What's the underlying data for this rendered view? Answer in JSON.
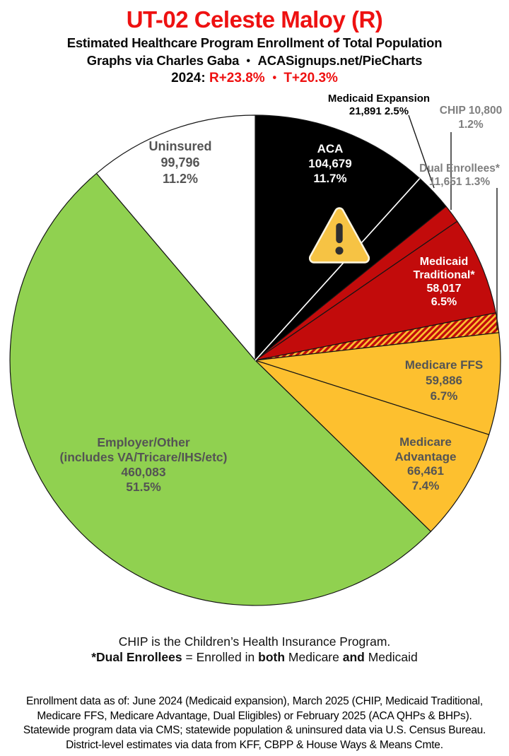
{
  "header": {
    "title": "UT-02 Celeste Maloy (R)",
    "subtitle": "Estimated Healthcare Program Enrollment of Total Population",
    "credit": {
      "left": "Graphs via Charles Gaba",
      "bullet": "•",
      "right": "ACASignups.net/PieCharts"
    },
    "lean": {
      "year": "2024:",
      "r": "R+23.8%",
      "bullet": "•",
      "t": "T+20.3%"
    }
  },
  "colors": {
    "title_red": "#ee1111",
    "medicaid_red": "#c20b0b",
    "medicare_yellow": "#fdc02f",
    "employer_green": "#90d150",
    "aca_black": "#000000",
    "uninsured_white": "#ffffff",
    "label_dark_gray": "#545454",
    "label_muted_gray": "#7f7f7f"
  },
  "icons": {
    "warning": "warning-triangle-icon"
  },
  "chart_data": {
    "type": "pie",
    "title": "UT-02 Celeste Maloy (R)",
    "subtitle": "Estimated Healthcare Program Enrollment of Total Population",
    "direction": "clockwise",
    "start_angle_deg": 0,
    "hatch": {
      "base": "#c20b0b",
      "stripe": "#fdc02f"
    },
    "segments": [
      {
        "name": "ACA",
        "value": "104,679",
        "pct": 11.7,
        "pct_label": "11.7%",
        "color": "#000000",
        "label_position": "inside"
      },
      {
        "name": "Medicaid Expansion",
        "value": "21,891",
        "pct": 2.5,
        "pct_label": "2.5%",
        "color": "#000000",
        "label_position": "outside"
      },
      {
        "name": "CHIP",
        "value": "10,800",
        "pct": 1.2,
        "pct_label": "1.2%",
        "color": "#c20b0b",
        "label_position": "outside"
      },
      {
        "name": "Medicaid Traditional*",
        "value": "58,017",
        "pct": 6.5,
        "pct_label": "6.5%",
        "color": "#c20b0b",
        "label_position": "inside"
      },
      {
        "name": "Dual Enrollees*",
        "value": "11,651",
        "pct": 1.3,
        "pct_label": "1.3%",
        "pattern": "red-yellow-hatch",
        "label_position": "outside"
      },
      {
        "name": "Medicare FFS",
        "value": "59,886",
        "pct": 6.7,
        "pct_label": "6.7%",
        "color": "#fdc02f",
        "label_position": "inside"
      },
      {
        "name": "Medicare Advantage",
        "value": "66,461",
        "pct": 7.4,
        "pct_label": "7.4%",
        "color": "#fdc02f",
        "label_position": "inside"
      },
      {
        "name": "Employer/Other",
        "sublabel": "(includes VA/Tricare/IHS/etc)",
        "value": "460,083",
        "pct": 51.5,
        "pct_label": "51.5%",
        "color": "#90d150",
        "label_position": "inside"
      },
      {
        "name": "Uninsured",
        "value": "99,796",
        "pct": 11.2,
        "pct_label": "11.2%",
        "color": "#ffffff",
        "label_position": "inside"
      }
    ]
  },
  "notes": {
    "line1": "CHIP is the Children’s Health Insurance Program.",
    "line2": {
      "b1": "*Dual Enrollees",
      "r1": " = Enrolled in ",
      "b2": "both",
      "r2": " Medicare ",
      "b3": "and",
      "r3": " Medicaid"
    }
  },
  "footer": {
    "line1": "Enrollment data as of: June 2024 (Medicaid expansion), March 2025 (CHIP, Medicaid Traditional,",
    "line2": "Medicare FFS, Medicare Advantage, Dual Eligibles) or February 2025 (ACA QHPs & BHPs).",
    "line3": "Statewide program data via CMS; statewide population & uninsured data via U.S. Census Bureau.",
    "line4": "District-level estimates via data from KFF, CBPP & House Ways & Means Cmte."
  }
}
